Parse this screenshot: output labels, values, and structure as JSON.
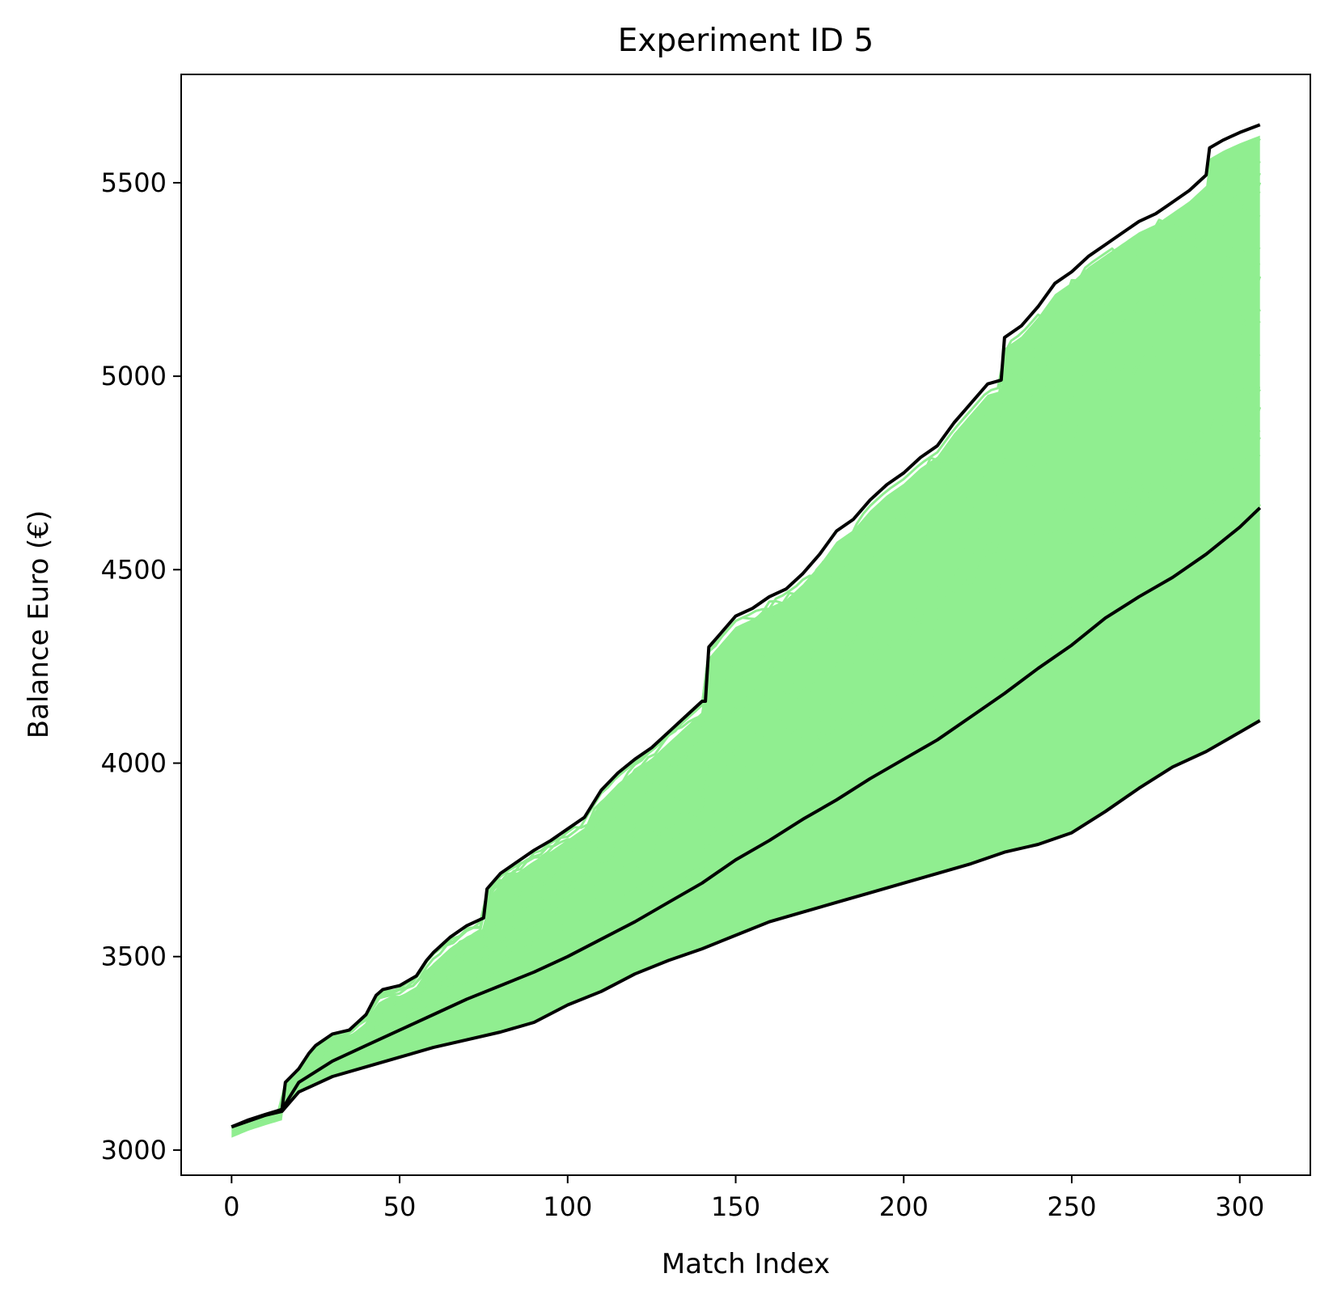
{
  "chart_data": {
    "type": "line",
    "title": "Experiment ID 5",
    "xlabel": "Match Index",
    "ylabel": "Balance Euro (€)",
    "xlim": [
      -15,
      321
    ],
    "ylim": [
      2935,
      5780
    ],
    "xticks": [
      0,
      50,
      100,
      150,
      200,
      250,
      300
    ],
    "yticks": [
      3000,
      3500,
      4000,
      4500,
      5000,
      5500
    ],
    "grid": false,
    "legend": "none",
    "n_matches": 306,
    "colors": {
      "simulations": "#90ee90",
      "envelope": "#000000"
    },
    "envelope": [
      {
        "id": "max",
        "x": [
          0,
          5,
          10,
          15,
          16,
          20,
          23,
          25,
          30,
          35,
          40,
          43,
          45,
          50,
          55,
          58,
          60,
          65,
          70,
          75,
          76,
          80,
          85,
          90,
          95,
          100,
          105,
          110,
          115,
          120,
          125,
          130,
          135,
          140,
          141,
          142,
          145,
          150,
          155,
          160,
          165,
          170,
          175,
          180,
          185,
          190,
          195,
          200,
          205,
          210,
          215,
          220,
          225,
          229,
          230,
          235,
          240,
          245,
          250,
          255,
          260,
          265,
          270,
          275,
          280,
          285,
          290,
          291,
          295,
          300,
          306
        ],
        "y": [
          3060,
          3078,
          3092,
          3105,
          3175,
          3210,
          3250,
          3270,
          3300,
          3310,
          3350,
          3400,
          3415,
          3425,
          3450,
          3490,
          3510,
          3550,
          3580,
          3600,
          3675,
          3715,
          3745,
          3775,
          3800,
          3830,
          3860,
          3930,
          3975,
          4010,
          4040,
          4080,
          4120,
          4160,
          4160,
          4300,
          4330,
          4380,
          4400,
          4430,
          4450,
          4490,
          4540,
          4600,
          4630,
          4680,
          4720,
          4750,
          4790,
          4820,
          4880,
          4930,
          4980,
          4990,
          5100,
          5130,
          5180,
          5240,
          5270,
          5310,
          5340,
          5370,
          5400,
          5420,
          5450,
          5480,
          5520,
          5590,
          5610,
          5630,
          5650
        ]
      },
      {
        "id": "mean",
        "x": [
          0,
          10,
          15,
          20,
          30,
          40,
          50,
          60,
          70,
          80,
          90,
          100,
          110,
          120,
          130,
          140,
          150,
          160,
          170,
          180,
          190,
          200,
          210,
          220,
          230,
          240,
          250,
          260,
          270,
          280,
          290,
          300,
          306
        ],
        "y": [
          3060,
          3090,
          3105,
          3175,
          3230,
          3270,
          3310,
          3350,
          3390,
          3425,
          3460,
          3500,
          3545,
          3590,
          3640,
          3690,
          3750,
          3800,
          3855,
          3905,
          3960,
          4010,
          4060,
          4120,
          4180,
          4245,
          4305,
          4375,
          4430,
          4480,
          4540,
          4610,
          4660
        ]
      },
      {
        "id": "min",
        "x": [
          0,
          10,
          15,
          20,
          30,
          40,
          50,
          60,
          70,
          80,
          90,
          100,
          110,
          120,
          130,
          140,
          150,
          160,
          170,
          180,
          190,
          200,
          210,
          220,
          230,
          240,
          250,
          260,
          270,
          280,
          290,
          300,
          306
        ],
        "y": [
          3060,
          3090,
          3100,
          3150,
          3190,
          3215,
          3240,
          3265,
          3285,
          3305,
          3330,
          3375,
          3410,
          3455,
          3490,
          3520,
          3555,
          3590,
          3615,
          3640,
          3665,
          3690,
          3715,
          3740,
          3770,
          3790,
          3820,
          3875,
          3935,
          3990,
          4030,
          4080,
          4110
        ]
      }
    ]
  }
}
